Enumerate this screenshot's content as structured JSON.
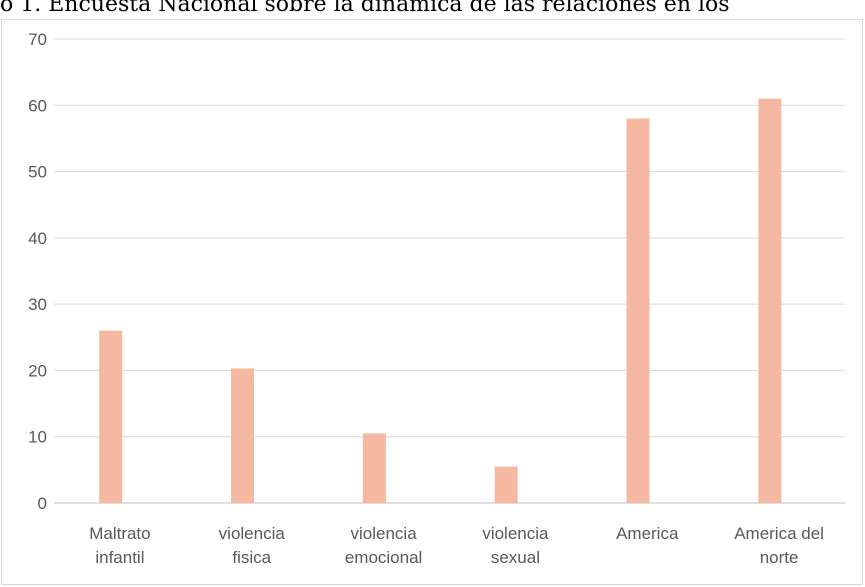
{
  "chart_data": {
    "type": "bar",
    "title": "o 1. Encuesta Nacional sobre la dinámica de las relaciones en los",
    "categories": [
      [
        "Maltrato",
        "infantil"
      ],
      [
        "violencia",
        "fisica"
      ],
      [
        "violencia",
        "emocional"
      ],
      [
        "violencia",
        "sexual"
      ],
      [
        "America"
      ],
      [
        "America del",
        "norte"
      ]
    ],
    "values": [
      26,
      20.3,
      10.5,
      5.5,
      58,
      61
    ],
    "ylim": [
      0,
      70
    ],
    "yticks": [
      "0",
      "10",
      "20",
      "30",
      "40",
      "50",
      "60",
      "70"
    ],
    "grid": true,
    "bar_color": "#f4b9a0",
    "grid_color": "#d9d9d9",
    "axis_color": "#bfbfbf"
  }
}
